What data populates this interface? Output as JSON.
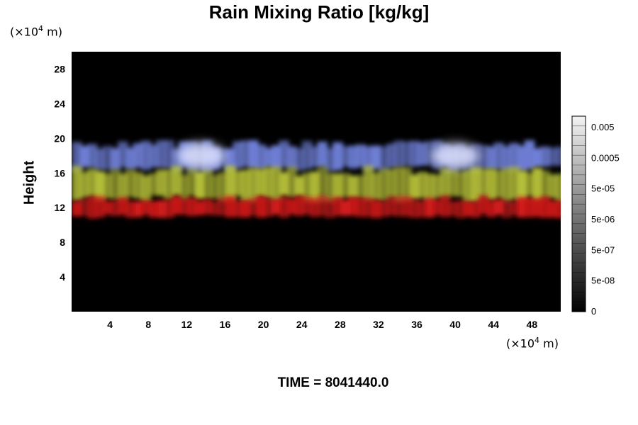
{
  "chart_data": {
    "type": "heatmap",
    "title": "Rain Mixing Ratio [kg/kg]",
    "ylabel": "Height",
    "x_unit_prefix": "(×10",
    "x_unit_exp": "4",
    "x_unit_suffix": " m)",
    "y_unit_prefix": "(×10",
    "y_unit_exp": "4",
    "y_unit_suffix": " m)",
    "xlim": [
      0,
      51
    ],
    "ylim": [
      0,
      30
    ],
    "x_ticks": [
      4,
      8,
      12,
      16,
      20,
      24,
      28,
      32,
      36,
      40,
      44,
      48
    ],
    "y_ticks": [
      4,
      8,
      12,
      16,
      20,
      24,
      28
    ],
    "colorbar": {
      "labels": [
        "0.005",
        "0.0005",
        "5e-05",
        "5e-06",
        "5e-07",
        "5e-08",
        "0"
      ],
      "scale": "log"
    },
    "bands": [
      {
        "name": "upper",
        "color": "#6f7fd6",
        "y_min": 16.5,
        "y_max": 19.5
      },
      {
        "name": "middle",
        "color": "#b8c23a",
        "y_min": 13.0,
        "y_max": 16.5
      },
      {
        "name": "lower",
        "color": "#d11a1a",
        "y_min": 11.0,
        "y_max": 13.2
      }
    ],
    "bright_cores_x": [
      13.5,
      40.0
    ],
    "background_color": "#000000"
  },
  "footer": {
    "time_label": "TIME = 8041440.0"
  }
}
